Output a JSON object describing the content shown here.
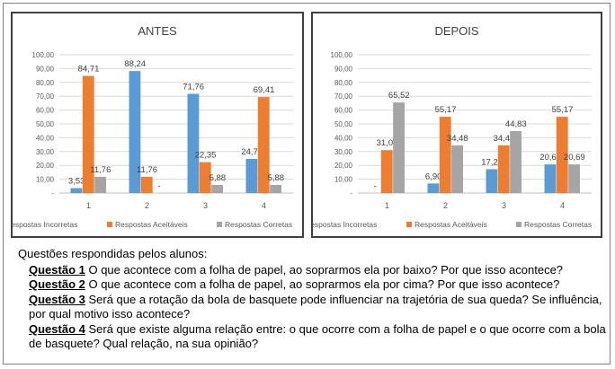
{
  "chart_data": [
    {
      "type": "bar",
      "title": "ANTES",
      "categories": [
        "1",
        "2",
        "3",
        "4"
      ],
      "ylim": [
        0,
        100
      ],
      "yticks": [
        "-",
        "10,00",
        "20,00",
        "30,00",
        "40,00",
        "50,00",
        "60,00",
        "70,00",
        "80,00",
        "90,00",
        "100,00"
      ],
      "grid": true,
      "legend_position": "bottom",
      "series": [
        {
          "name": "Respostas Incorretas",
          "color": "#5B9BD5",
          "values": [
            3.53,
            88.24,
            71.76,
            24.71
          ],
          "labels": [
            "3,53",
            "88,24",
            "71,76",
            "24,71"
          ]
        },
        {
          "name": "Respostas Aceitáveis",
          "color": "#ED7D31",
          "values": [
            84.71,
            11.76,
            22.35,
            69.41
          ],
          "labels": [
            "84,71",
            "11,76",
            "22,35",
            "69,41"
          ]
        },
        {
          "name": "Respostas Corretas",
          "color": "#A5A5A5",
          "values": [
            11.76,
            0,
            5.88,
            5.88
          ],
          "labels": [
            "11,76",
            "-",
            "5,88",
            "5,88"
          ]
        }
      ]
    },
    {
      "type": "bar",
      "title": "DEPOIS",
      "categories": [
        "1",
        "2",
        "3",
        "4"
      ],
      "ylim": [
        0,
        100
      ],
      "yticks": [
        "-",
        "10,00",
        "20,00",
        "30,00",
        "40,00",
        "50,00",
        "60,00",
        "70,00",
        "80,00",
        "90,00",
        "100,00"
      ],
      "grid": true,
      "legend_position": "bottom",
      "series": [
        {
          "name": "Respostas Incorretas",
          "color": "#5B9BD5",
          "values": [
            0,
            6.9,
            17.24,
            20.69
          ],
          "labels": [
            "-",
            "6,90",
            "17,24",
            "20,69"
          ]
        },
        {
          "name": "Respostas Aceitáveis",
          "color": "#ED7D31",
          "values": [
            31.03,
            55.17,
            34.48,
            55.17
          ],
          "labels": [
            "31,03",
            "55,17",
            "34,48",
            "55,17"
          ]
        },
        {
          "name": "Respostas Corretas",
          "color": "#A5A5A5",
          "values": [
            65.52,
            34.48,
            44.83,
            20.69
          ],
          "labels": [
            "65,52",
            "34,48",
            "44,83",
            "20,69"
          ]
        }
      ]
    }
  ],
  "questions": {
    "intro": "Questões respondidas pelos alunos:",
    "items": [
      {
        "title": "Questão 1",
        "text": " O que acontece com a folha de papel, ao soprarmos ela por baixo? Por que isso acontece?"
      },
      {
        "title": "Questão 2",
        "text": " O que acontece com a folha de papel, ao soprarmos ela por cima? Por que isso acontece?"
      },
      {
        "title": "Questão 3",
        "text": " Será que a rotação da bola de basquete pode influenciar na trajetória de sua queda? Se influência, por qual motivo isso acontece?"
      },
      {
        "title": "Questão 4",
        "text": " Será que existe alguma relação entre: o que ocorre com a folha de papel e o que ocorre com a bola de basquete? Qual relação, na sua opinião?"
      }
    ]
  }
}
